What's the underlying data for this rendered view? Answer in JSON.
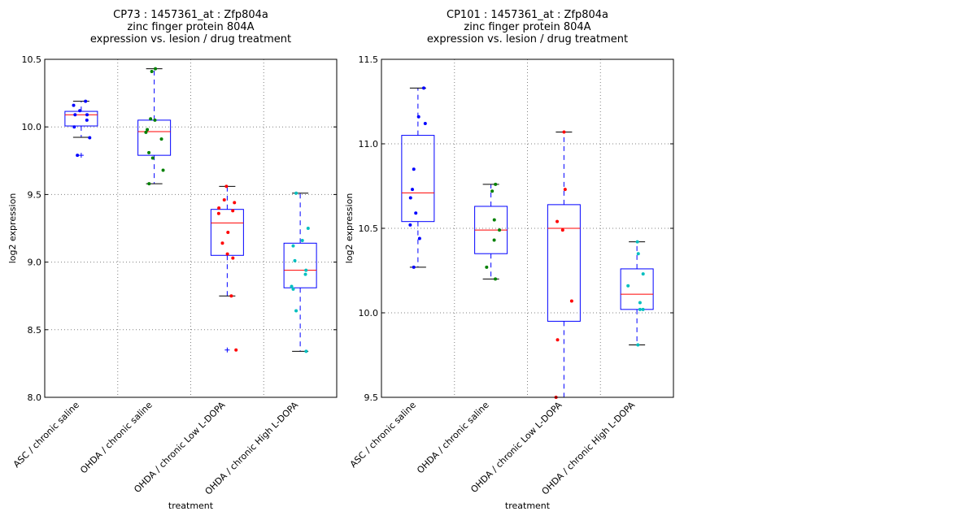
{
  "chart_data": [
    {
      "type": "box",
      "title": [
        "CP73 : 1457361_at : Zfp804a",
        "zinc finger protein 804A",
        "expression vs. lesion / drug treatment"
      ],
      "xlabel": "treatment",
      "ylabel": "log2 expression",
      "ylim": [
        8.0,
        10.5
      ],
      "yticks": [
        8.0,
        8.5,
        9.0,
        9.5,
        10.0,
        10.5
      ],
      "ytick_labels": [
        "8.0",
        "8.5",
        "9.0",
        "9.5",
        "10.0",
        "10.5"
      ],
      "grid": true,
      "categories": [
        "ASC / chronic saline",
        "OHDA / chronic saline",
        "OHDA / chronic Low L-DOPA",
        "OHDA / chronic High L-DOPA"
      ],
      "point_colors": [
        "#0000ff",
        "#008000",
        "#ff0000",
        "#00bfbf"
      ],
      "box_color": "#0000ff",
      "median_color": "#ff0000",
      "whisker_cap_color": "#000000",
      "boxes": [
        {
          "q1": 10.007,
          "median": 10.09,
          "q3": 10.115,
          "whisker_low": 9.923,
          "whisker_high": 10.19,
          "outliers": [
            9.79
          ]
        },
        {
          "q1": 9.79,
          "median": 9.965,
          "q3": 10.05,
          "whisker_low": 9.58,
          "whisker_high": 10.43,
          "outliers": []
        },
        {
          "q1": 9.05,
          "median": 9.29,
          "q3": 9.39,
          "whisker_low": 8.75,
          "whisker_high": 9.56,
          "outliers": [
            8.35
          ]
        },
        {
          "q1": 8.81,
          "median": 8.94,
          "q3": 9.14,
          "whisker_low": 8.34,
          "whisker_high": 9.51,
          "outliers": []
        }
      ],
      "points": [
        [
          10.19,
          10.16,
          10.12,
          10.09,
          10.09,
          10.05,
          10.0,
          9.92,
          9.79
        ],
        [
          10.43,
          10.41,
          10.06,
          10.05,
          9.98,
          9.96,
          9.91,
          9.81,
          9.77,
          9.68,
          9.58
        ],
        [
          9.56,
          9.46,
          9.44,
          9.4,
          9.38,
          9.36,
          9.22,
          9.14,
          9.06,
          9.03,
          8.75,
          8.35
        ],
        [
          9.51,
          9.25,
          9.16,
          9.12,
          9.01,
          8.94,
          8.91,
          8.82,
          8.8,
          8.64,
          8.34
        ]
      ]
    },
    {
      "type": "box",
      "title": [
        "CP101 : 1457361_at : Zfp804a",
        "zinc finger protein 804A",
        "expression vs. lesion / drug treatment"
      ],
      "xlabel": "treatment",
      "ylabel": "log2 expression",
      "ylim": [
        9.5,
        11.5
      ],
      "yticks": [
        9.5,
        10.0,
        10.5,
        11.0,
        11.5
      ],
      "ytick_labels": [
        "9.5",
        "10.0",
        "10.5",
        "11.0",
        "11.5"
      ],
      "grid": true,
      "categories": [
        "ASC / chronic saline",
        "OHDA / chronic saline",
        "OHDA / chronic Low L-DOPA",
        "OHDA / chronic High L-DOPA"
      ],
      "point_colors": [
        "#0000ff",
        "#008000",
        "#ff0000",
        "#00bfbf"
      ],
      "box_color": "#0000ff",
      "median_color": "#ff0000",
      "whisker_cap_color": "#000000",
      "boxes": [
        {
          "q1": 10.54,
          "median": 10.71,
          "q3": 11.05,
          "whisker_low": 10.27,
          "whisker_high": 11.33,
          "outliers": []
        },
        {
          "q1": 10.35,
          "median": 10.49,
          "q3": 10.63,
          "whisker_low": 10.2,
          "whisker_high": 10.76,
          "outliers": []
        },
        {
          "q1": 9.95,
          "median": 10.5,
          "q3": 10.64,
          "whisker_low": 9.5,
          "whisker_high": 11.07,
          "outliers": []
        },
        {
          "q1": 10.02,
          "median": 10.11,
          "q3": 10.26,
          "whisker_low": 9.81,
          "whisker_high": 10.42,
          "outliers": []
        }
      ],
      "points": [
        [
          11.33,
          11.16,
          11.12,
          10.85,
          10.73,
          10.68,
          10.59,
          10.52,
          10.44,
          10.27
        ],
        [
          10.76,
          10.72,
          10.55,
          10.49,
          10.43,
          10.27,
          10.2
        ],
        [
          11.07,
          10.73,
          10.54,
          10.49,
          10.07,
          9.84,
          9.5
        ],
        [
          10.42,
          10.35,
          10.23,
          10.16,
          10.06,
          10.02,
          10.02,
          9.81
        ]
      ]
    }
  ]
}
